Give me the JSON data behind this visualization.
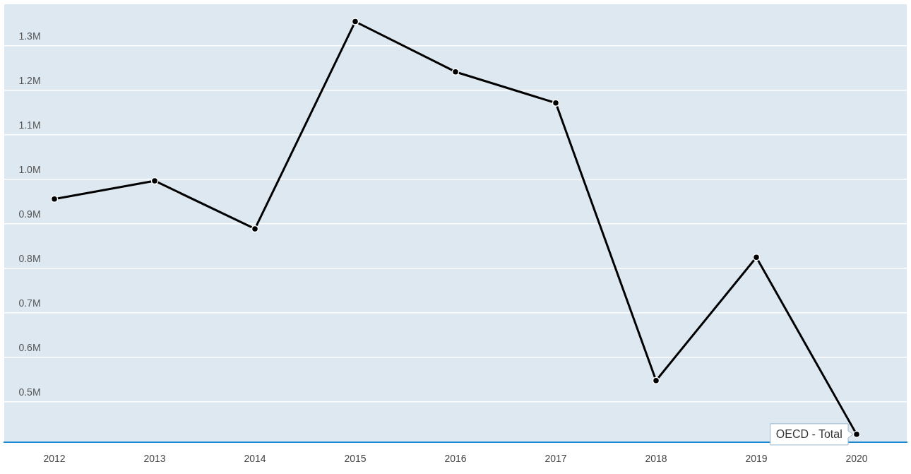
{
  "chart_data": {
    "type": "line",
    "categories": [
      "2012",
      "2013",
      "2014",
      "2015",
      "2016",
      "2017",
      "2018",
      "2019",
      "2020"
    ],
    "series": [
      {
        "name": "OECD - Total",
        "color": "#000000",
        "values": [
          956000,
          997000,
          889000,
          1355000,
          1242000,
          1172000,
          548000,
          825000,
          427000
        ]
      }
    ],
    "ylim": [
      409000,
      1394000
    ],
    "yticks": [
      {
        "value": 500000,
        "label": "0.5M"
      },
      {
        "value": 600000,
        "label": "0.6M"
      },
      {
        "value": 700000,
        "label": "0.7M"
      },
      {
        "value": 800000,
        "label": "0.8M"
      },
      {
        "value": 900000,
        "label": "0.9M"
      },
      {
        "value": 1000000,
        "label": "1.0M"
      },
      {
        "value": 1100000,
        "label": "1.1M"
      },
      {
        "value": 1200000,
        "label": "1.2M"
      },
      {
        "value": 1300000,
        "label": "1.3M"
      }
    ],
    "grid": "y",
    "marker": "circle",
    "line_style": "solid",
    "legend": false
  }
}
